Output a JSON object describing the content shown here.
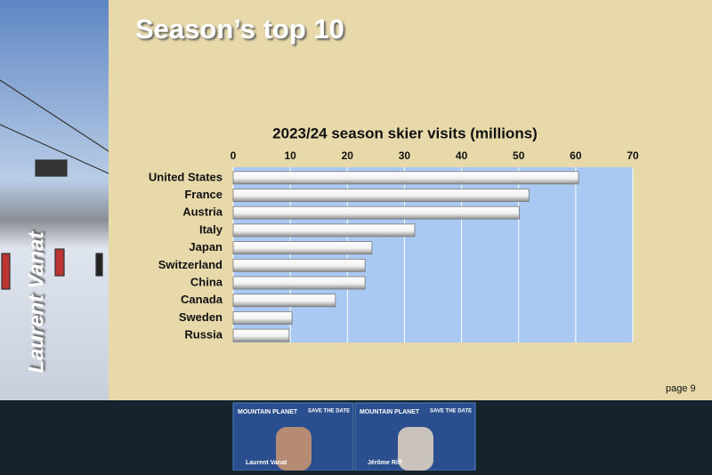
{
  "slide": {
    "title": "Season’s top 10",
    "author": "Laurent Vanat",
    "page": "page 9"
  },
  "chart_data": {
    "type": "bar",
    "orientation": "horizontal",
    "title": "2023/24 season skier visits (millions)",
    "categories": [
      "United States",
      "France",
      "Austria",
      "Italy",
      "Japan",
      "Switzerland",
      "China",
      "Canada",
      "Sweden",
      "Russia"
    ],
    "values": [
      60.5,
      51.8,
      50.1,
      31.8,
      24.3,
      23.1,
      23.1,
      17.9,
      10.3,
      9.8
    ],
    "color": "#ffffff",
    "plot_color": "#a9c9f2",
    "xlim": [
      0,
      70
    ],
    "xticks": [
      0,
      10,
      20,
      30,
      40,
      50,
      60,
      70
    ],
    "grid": true
  },
  "tiles": [
    {
      "brand": "MOUNTAIN PLANET",
      "banner": "SAVE THE DATE",
      "name": "Laurent Vanat"
    },
    {
      "brand": "MOUNTAIN PLANET",
      "banner": "SAVE THE DATE",
      "name": "Jérôme Riff"
    }
  ]
}
